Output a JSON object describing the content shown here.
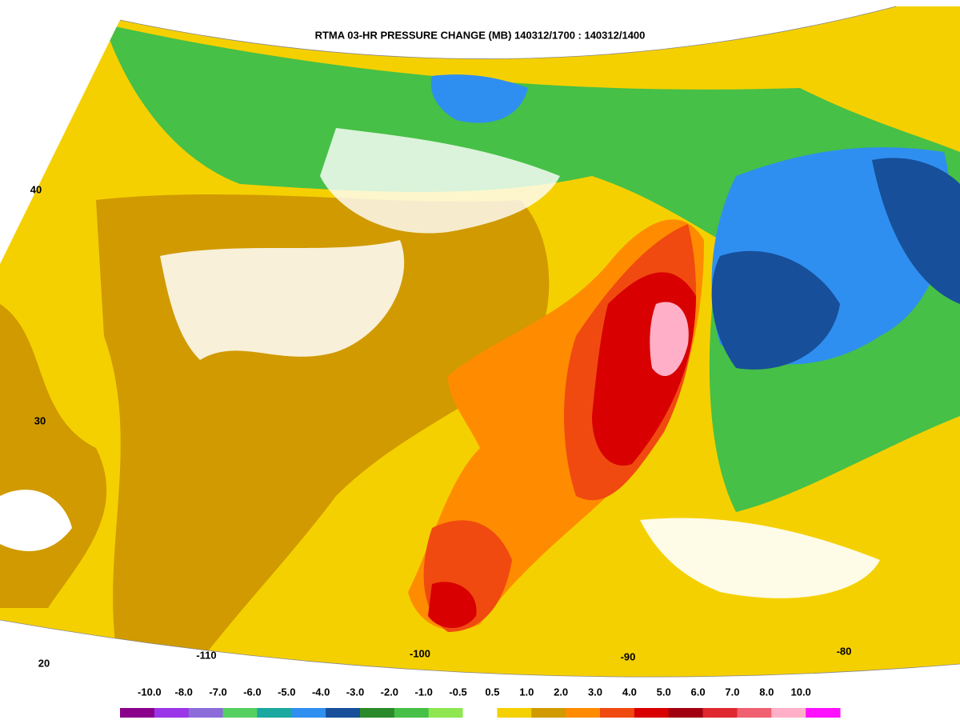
{
  "title": "RTMA 03-HR PRESSURE CHANGE (MB) 140312/1700 : 140312/1400",
  "latitude_labels": [
    "40",
    "30",
    "20"
  ],
  "longitude_labels": [
    "-110",
    "-100",
    "-90",
    "-80"
  ],
  "colorbar": {
    "labels": [
      "-10.0",
      "-8.0",
      "-7.0",
      "-6.0",
      "-5.0",
      "-4.0",
      "-3.0",
      "-2.0",
      "-1.0",
      "-0.5",
      "0.5",
      "1.0",
      "2.0",
      "3.0",
      "4.0",
      "5.0",
      "6.0",
      "7.0",
      "8.0",
      "10.0"
    ],
    "colors": [
      "#8a008a",
      "#9a35e8",
      "#8c6cd8",
      "#55d060",
      "#1aa8a0",
      "#2f8ff0",
      "#174f9a",
      "#2a8a2a",
      "#46c046",
      "#8ee650",
      "#ffffff",
      "#f5d000",
      "#d09a00",
      "#ff8c00",
      "#f04a10",
      "#d80000",
      "#a00010",
      "#e02830",
      "#f06070",
      "#ffb0c8",
      "#ff10ff"
    ]
  }
}
